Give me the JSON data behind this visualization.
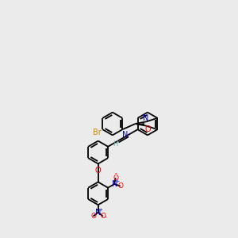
{
  "bg_color": "#ebebeb",
  "bond_color": "#000000",
  "atom_colors": {
    "N": "#0000cc",
    "O": "#ff0000",
    "Br": "#cc8800",
    "H": "#66aaaa",
    "C": "#000000"
  },
  "bl": 0.48,
  "figsize": [
    3.0,
    3.0
  ],
  "dpi": 100
}
